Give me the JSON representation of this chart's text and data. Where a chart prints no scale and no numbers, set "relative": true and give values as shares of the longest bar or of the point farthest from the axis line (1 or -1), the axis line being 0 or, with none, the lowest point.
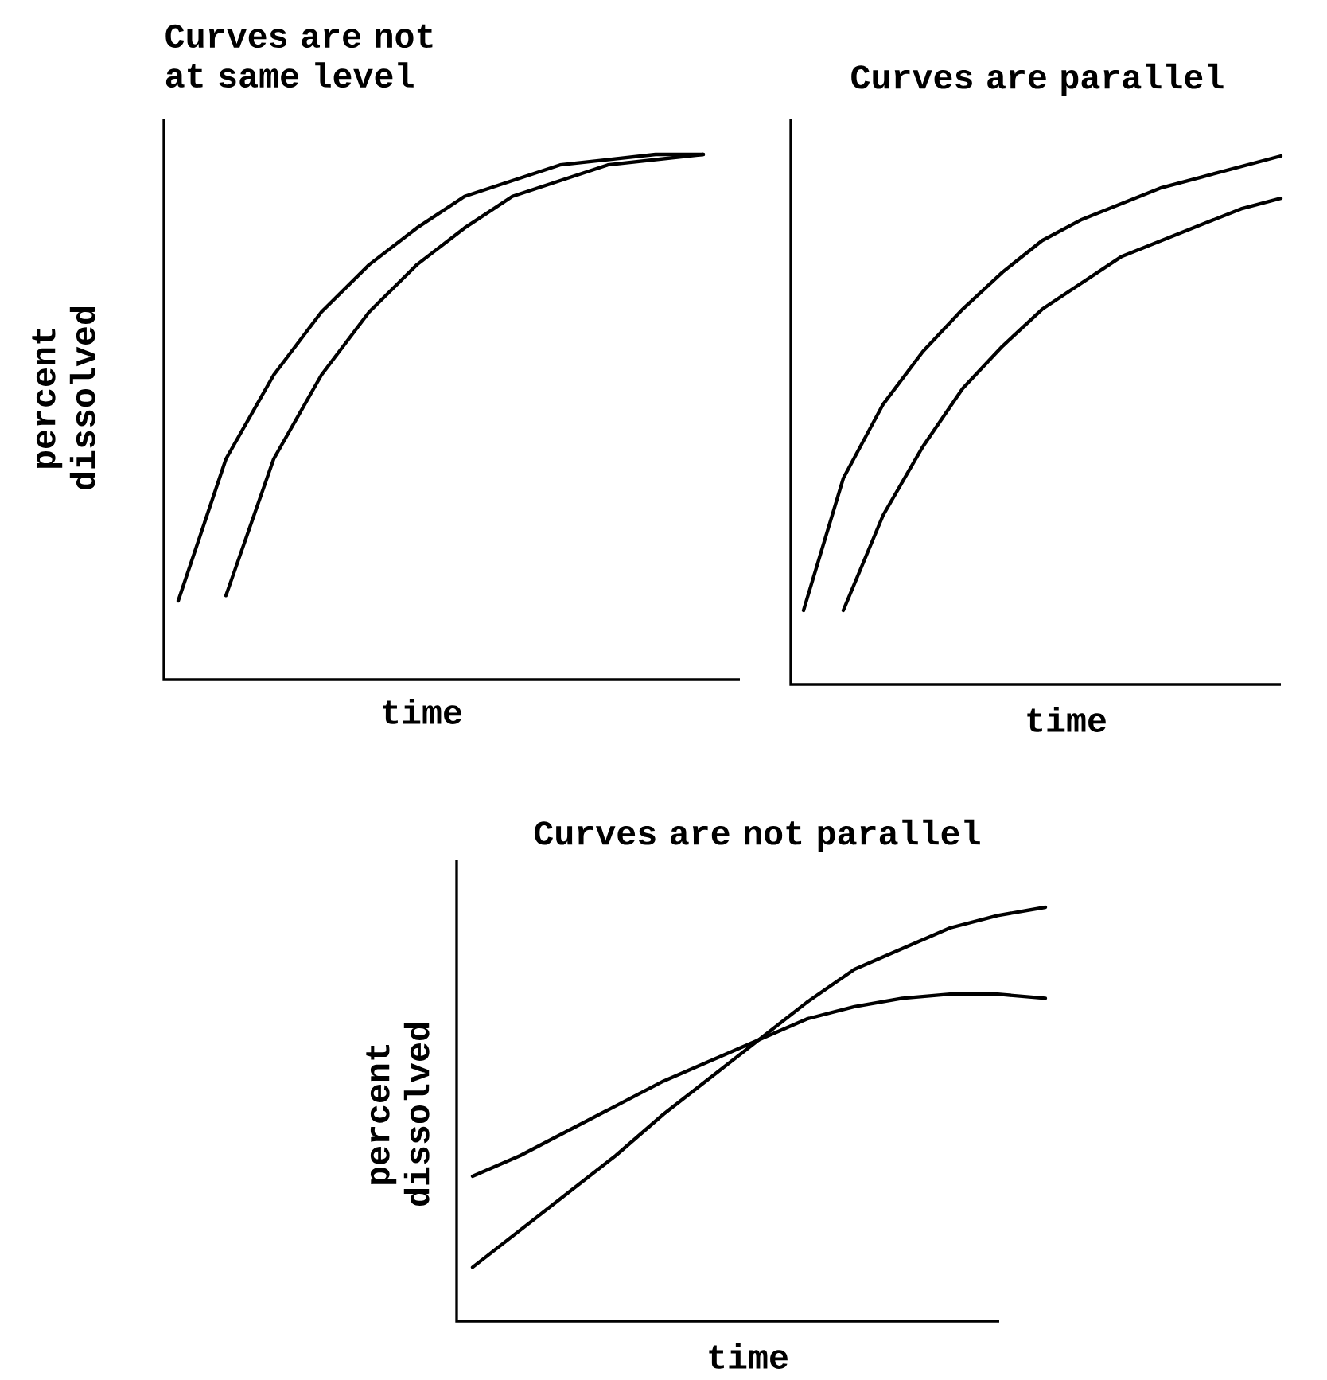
{
  "chart_data": [
    {
      "type": "line",
      "relative": true,
      "title": "Curves are not at same level",
      "xlabel": "time",
      "ylabel": "percent dissolved",
      "categories": [
        null,
        null,
        null,
        null,
        null,
        null,
        null,
        null,
        null,
        null,
        null,
        null
      ],
      "series": [
        {
          "color": "#000000",
          "values": [
            0.15,
            0.42,
            0.58,
            0.7,
            0.79,
            0.86,
            0.92,
            0.95,
            0.98,
            0.99,
            1.0,
            1.0
          ]
        },
        {
          "color": "#000000",
          "values": [
            null,
            0.16,
            0.42,
            0.58,
            0.7,
            0.79,
            0.86,
            0.92,
            0.95,
            0.98,
            0.99,
            1.0
          ]
        }
      ]
    },
    {
      "type": "line",
      "relative": true,
      "title": "Curves are parallel",
      "xlabel": "time",
      "categories": [
        null,
        null,
        null,
        null,
        null,
        null,
        null,
        null,
        null,
        null,
        null,
        null,
        null
      ],
      "series": [
        {
          "color": "#000000",
          "values": [
            0.14,
            0.39,
            0.53,
            0.63,
            0.71,
            0.78,
            0.84,
            0.88,
            0.91,
            0.94,
            0.96,
            0.98,
            1.0
          ]
        },
        {
          "color": "#000000",
          "values": [
            null,
            0.14,
            0.32,
            0.45,
            0.56,
            0.64,
            0.71,
            0.76,
            0.81,
            0.84,
            0.87,
            0.9,
            0.92
          ]
        }
      ]
    },
    {
      "type": "line",
      "relative": true,
      "title": "Curves are not parallel",
      "xlabel": "time",
      "ylabel": "percent dissolved",
      "categories": [
        null,
        null,
        null,
        null,
        null,
        null,
        null,
        null,
        null,
        null,
        null,
        null,
        null
      ],
      "series": [
        {
          "color": "#000000",
          "values": [
            0.13,
            0.22,
            0.31,
            0.4,
            0.5,
            0.59,
            0.68,
            0.77,
            0.85,
            0.9,
            0.95,
            0.98,
            1.0
          ]
        },
        {
          "color": "#000000",
          "values": [
            0.35,
            0.4,
            0.46,
            0.52,
            0.58,
            0.63,
            0.68,
            0.73,
            0.76,
            0.78,
            0.79,
            0.79,
            0.78
          ]
        }
      ]
    }
  ]
}
